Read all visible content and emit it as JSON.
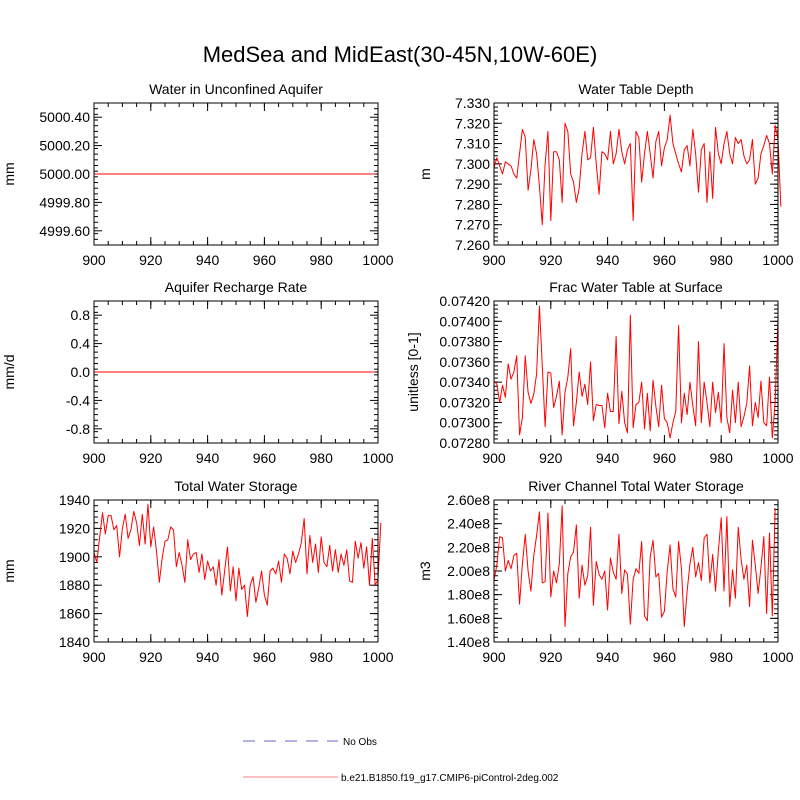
{
  "figure_title": "MedSea and MidEast(30-45N,10W-60E)",
  "colors": {
    "model_line": "#ff0000",
    "obs_line": "#9999dd",
    "axis": "#000000"
  },
  "legend": {
    "obs_label": "No Obs",
    "model_label": "b.e21.B1850.f19_g17.CMIP6-piControl-2deg.002"
  },
  "chart_data": [
    {
      "type": "line",
      "title": "Water in Unconfined Aquifer",
      "ylabel": "mm",
      "xlim": [
        900,
        1000
      ],
      "ylim": [
        4999.5,
        5000.5
      ],
      "xticks": [
        900,
        920,
        940,
        960,
        980,
        1000
      ],
      "xtick_labels": [
        "900",
        "920",
        "940",
        "960",
        "980",
        "1000"
      ],
      "yticks": [
        4999.6,
        4999.8,
        5000.0,
        5000.2,
        5000.4
      ],
      "ytick_labels": [
        "4999.60",
        "4999.80",
        "5000.00",
        "5000.20",
        "5000.40"
      ],
      "series": [
        {
          "name": "b.e21.B1850.f19_g17.CMIP6-piControl-2deg.002",
          "x_start": 900,
          "x_step": 1,
          "values": [
            5000,
            5000,
            5000,
            5000,
            5000,
            5000,
            5000,
            5000,
            5000,
            5000,
            5000,
            5000,
            5000,
            5000,
            5000,
            5000,
            5000,
            5000,
            5000,
            5000,
            5000,
            5000,
            5000,
            5000,
            5000,
            5000,
            5000,
            5000,
            5000,
            5000,
            5000,
            5000,
            5000,
            5000,
            5000,
            5000,
            5000,
            5000,
            5000,
            5000,
            5000,
            5000,
            5000,
            5000,
            5000,
            5000,
            5000,
            5000,
            5000,
            5000,
            5000,
            5000,
            5000,
            5000,
            5000,
            5000,
            5000,
            5000,
            5000,
            5000,
            5000,
            5000,
            5000,
            5000,
            5000,
            5000,
            5000,
            5000,
            5000,
            5000,
            5000,
            5000,
            5000,
            5000,
            5000,
            5000,
            5000,
            5000,
            5000,
            5000,
            5000,
            5000,
            5000,
            5000,
            5000,
            5000,
            5000,
            5000,
            5000,
            5000,
            5000,
            5000,
            5000,
            5000,
            5000,
            5000,
            5000,
            5000,
            5000,
            5000
          ]
        }
      ]
    },
    {
      "type": "line",
      "title": "Water Table Depth",
      "ylabel": "m",
      "xlim": [
        900,
        1000
      ],
      "ylim": [
        7.26,
        7.33
      ],
      "xticks": [
        900,
        920,
        940,
        960,
        980,
        1000
      ],
      "xtick_labels": [
        "900",
        "920",
        "940",
        "960",
        "980",
        "1000"
      ],
      "yticks": [
        7.26,
        7.27,
        7.28,
        7.29,
        7.3,
        7.31,
        7.32,
        7.33
      ],
      "ytick_labels": [
        "7.260",
        "7.270",
        "7.280",
        "7.290",
        "7.300",
        "7.310",
        "7.320",
        "7.330"
      ],
      "series": [
        {
          "name": "b.e21.B1850.f19_g17.CMIP6-piControl-2deg.002",
          "x_start": 900,
          "x_step": 1,
          "values": [
            7.298,
            7.303,
            7.299,
            7.295,
            7.301,
            7.3,
            7.299,
            7.295,
            7.293,
            7.305,
            7.317,
            7.313,
            7.287,
            7.297,
            7.312,
            7.305,
            7.289,
            7.27,
            7.3,
            7.316,
            7.272,
            7.306,
            7.306,
            7.302,
            7.281,
            7.32,
            7.316,
            7.295,
            7.291,
            7.281,
            7.288,
            7.305,
            7.316,
            7.302,
            7.303,
            7.318,
            7.3,
            7.285,
            7.306,
            7.305,
            7.302,
            7.316,
            7.3,
            7.305,
            7.317,
            7.306,
            7.3,
            7.307,
            7.31,
            7.272,
            7.316,
            7.313,
            7.291,
            7.305,
            7.316,
            7.305,
            7.293,
            7.311,
            7.316,
            7.299,
            7.308,
            7.312,
            7.324,
            7.31,
            7.305,
            7.3,
            7.296,
            7.307,
            7.309,
            7.299,
            7.317,
            7.305,
            7.286,
            7.307,
            7.31,
            7.281,
            7.306,
            7.283,
            7.318,
            7.305,
            7.3,
            7.31,
            7.316,
            7.305,
            7.3,
            7.313,
            7.31,
            7.312,
            7.304,
            7.3,
            7.302,
            7.312,
            7.29,
            7.293,
            7.305,
            7.309,
            7.314,
            7.31,
            7.295,
            7.319,
            7.312,
            7.279
          ]
        }
      ]
    },
    {
      "type": "line",
      "title": "Aquifer Recharge Rate",
      "ylabel": "mm/d",
      "xlim": [
        900,
        1000
      ],
      "ylim": [
        -1.0,
        1.0
      ],
      "xticks": [
        900,
        920,
        940,
        960,
        980,
        1000
      ],
      "xtick_labels": [
        "900",
        "920",
        "940",
        "960",
        "980",
        "1000"
      ],
      "yticks": [
        -0.8,
        -0.4,
        0.0,
        0.4,
        0.8
      ],
      "ytick_labels": [
        "-0.8",
        "-0.4",
        "0.0",
        "0.4",
        "0.8"
      ],
      "series": [
        {
          "name": "b.e21.B1850.f19_g17.CMIP6-piControl-2deg.002",
          "x_start": 900,
          "x_step": 1,
          "values": [
            0,
            0,
            0,
            0,
            0,
            0,
            0,
            0,
            0,
            0,
            0,
            0,
            0,
            0,
            0,
            0,
            0,
            0,
            0,
            0,
            0,
            0,
            0,
            0,
            0,
            0,
            0,
            0,
            0,
            0,
            0,
            0,
            0,
            0,
            0,
            0,
            0,
            0,
            0,
            0,
            0,
            0,
            0,
            0,
            0,
            0,
            0,
            0,
            0,
            0,
            0,
            0,
            0,
            0,
            0,
            0,
            0,
            0,
            0,
            0,
            0,
            0,
            0,
            0,
            0,
            0,
            0,
            0,
            0,
            0,
            0,
            0,
            0,
            0,
            0,
            0,
            0,
            0,
            0,
            0,
            0,
            0,
            0,
            0,
            0,
            0,
            0,
            0,
            0,
            0,
            0,
            0,
            0,
            0,
            0,
            0,
            0,
            0,
            0,
            0
          ]
        }
      ]
    },
    {
      "type": "line",
      "title": "Frac Water Table at Surface",
      "ylabel": "unitless [0-1]",
      "xlim": [
        900,
        1000
      ],
      "ylim": [
        0.0728,
        0.0742
      ],
      "xticks": [
        900,
        920,
        940,
        960,
        980,
        1000
      ],
      "xtick_labels": [
        "900",
        "920",
        "940",
        "960",
        "980",
        "1000"
      ],
      "yticks": [
        0.0728,
        0.073,
        0.0732,
        0.0734,
        0.0736,
        0.0738,
        0.074,
        0.0742
      ],
      "ytick_labels": [
        "0.07280",
        "0.07300",
        "0.07320",
        "0.07340",
        "0.07360",
        "0.07380",
        "0.07400",
        "0.07420"
      ],
      "series": [
        {
          "name": "b.e21.B1850.f19_g17.CMIP6-piControl-2deg.002",
          "x_start": 900,
          "x_step": 1,
          "values": [
            0.07341,
            0.07338,
            0.0732,
            0.07337,
            0.07325,
            0.07358,
            0.07343,
            0.0735,
            0.07366,
            0.07288,
            0.07305,
            0.07366,
            0.0733,
            0.07319,
            0.07328,
            0.07348,
            0.07415,
            0.07356,
            0.07296,
            0.0735,
            0.07349,
            0.07315,
            0.07326,
            0.07341,
            0.07288,
            0.0733,
            0.07345,
            0.07373,
            0.07297,
            0.0732,
            0.0735,
            0.07326,
            0.07338,
            0.07318,
            0.0736,
            0.07302,
            0.07318,
            0.07317,
            0.07317,
            0.07295,
            0.07329,
            0.07311,
            0.07311,
            0.07385,
            0.07299,
            0.07331,
            0.073,
            0.0729,
            0.07406,
            0.07295,
            0.07318,
            0.0732,
            0.0734,
            0.07294,
            0.07329,
            0.07292,
            0.07342,
            0.07316,
            0.07296,
            0.07337,
            0.07304,
            0.073,
            0.07285,
            0.073,
            0.07311,
            0.07396,
            0.073,
            0.07329,
            0.07308,
            0.0734,
            0.07317,
            0.07297,
            0.0738,
            0.073,
            0.0734,
            0.0732,
            0.07296,
            0.0734,
            0.0731,
            0.0733,
            0.073,
            0.07378,
            0.07305,
            0.0729,
            0.07332,
            0.073,
            0.0734,
            0.07296,
            0.07306,
            0.07319,
            0.07356,
            0.07297,
            0.0732,
            0.07305,
            0.07341,
            0.073,
            0.07297,
            0.07345,
            0.07285,
            0.0732,
            0.07404
          ]
        }
      ]
    },
    {
      "type": "line",
      "title": "Total Water Storage",
      "ylabel": "mm",
      "xlim": [
        900,
        1000
      ],
      "ylim": [
        1840,
        1940
      ],
      "xticks": [
        900,
        920,
        940,
        960,
        980,
        1000
      ],
      "xtick_labels": [
        "900",
        "920",
        "940",
        "960",
        "980",
        "1000"
      ],
      "yticks": [
        1840,
        1860,
        1880,
        1900,
        1920,
        1940
      ],
      "ytick_labels": [
        "1840",
        "1860",
        "1880",
        "1900",
        "1920",
        "1940"
      ],
      "series": [
        {
          "name": "b.e21.B1850.f19_g17.CMIP6-piControl-2deg.002",
          "x_start": 900,
          "x_step": 1,
          "values": [
            1903,
            1896,
            1914,
            1931,
            1916,
            1929,
            1929,
            1919,
            1922,
            1900,
            1920,
            1930,
            1913,
            1919,
            1932,
            1924,
            1908,
            1930,
            1909,
            1937,
            1907,
            1921,
            1904,
            1882,
            1899,
            1911,
            1912,
            1921,
            1919,
            1893,
            1903,
            1894,
            1882,
            1912,
            1898,
            1902,
            1903,
            1889,
            1902,
            1884,
            1897,
            1890,
            1893,
            1880,
            1898,
            1873,
            1890,
            1907,
            1876,
            1893,
            1869,
            1892,
            1877,
            1880,
            1858,
            1880,
            1886,
            1868,
            1878,
            1890,
            1873,
            1866,
            1890,
            1892,
            1888,
            1897,
            1882,
            1902,
            1899,
            1888,
            1904,
            1896,
            1902,
            1910,
            1927,
            1888,
            1915,
            1896,
            1909,
            1889,
            1914,
            1896,
            1893,
            1908,
            1890,
            1905,
            1889,
            1902,
            1894,
            1905,
            1883,
            1882,
            1911,
            1899,
            1910,
            1892,
            1907,
            1880,
            1913,
            1880,
            1884,
            1924
          ]
        }
      ]
    },
    {
      "type": "line",
      "title": "River Channel Total Water Storage",
      "ylabel": "m3",
      "xlim": [
        900,
        1000
      ],
      "ylim": [
        140000000.0,
        260000000.0
      ],
      "xticks": [
        900,
        920,
        940,
        960,
        980,
        1000
      ],
      "xtick_labels": [
        "900",
        "920",
        "940",
        "960",
        "980",
        "1000"
      ],
      "yticks": [
        140000000.0,
        160000000.0,
        180000000.0,
        200000000.0,
        220000000.0,
        240000000.0,
        260000000.0
      ],
      "ytick_labels": [
        "1.40e8",
        "1.60e8",
        "1.80e8",
        "2.00e8",
        "2.20e8",
        "2.40e8",
        "2.60e8"
      ],
      "series": [
        {
          "name": "b.e21.B1850.f19_g17.CMIP6-piControl-2deg.002",
          "x_start": 900,
          "x_step": 1,
          "values": [
            192000000.0,
            205000000.0,
            229000000.0,
            228000000.0,
            200000000.0,
            209000000.0,
            202000000.0,
            213000000.0,
            215000000.0,
            172000000.0,
            206000000.0,
            231000000.0,
            200000000.0,
            183000000.0,
            213000000.0,
            230000000.0,
            250000000.0,
            190000000.0,
            191000000.0,
            249000000.0,
            178000000.0,
            200000000.0,
            190000000.0,
            206000000.0,
            255000000.0,
            153000000.0,
            198000000.0,
            212000000.0,
            216000000.0,
            239000000.0,
            177000000.0,
            205000000.0,
            188000000.0,
            196000000.0,
            237000000.0,
            171000000.0,
            208000000.0,
            197000000.0,
            193000000.0,
            200000000.0,
            167000000.0,
            211000000.0,
            199000000.0,
            193000000.0,
            231000000.0,
            181000000.0,
            201000000.0,
            197000000.0,
            155000000.0,
            193000000.0,
            202000000.0,
            198000000.0,
            225000000.0,
            162000000.0,
            158000000.0,
            212000000.0,
            226000000.0,
            195000000.0,
            198000000.0,
            161000000.0,
            166000000.0,
            200000000.0,
            222000000.0,
            185000000.0,
            178000000.0,
            225000000.0,
            202000000.0,
            153000000.0,
            183000000.0,
            206000000.0,
            220000000.0,
            195000000.0,
            207000000.0,
            192000000.0,
            228000000.0,
            231000000.0,
            190000000.0,
            214000000.0,
            183000000.0,
            217000000.0,
            245000000.0,
            183000000.0,
            246000000.0,
            170000000.0,
            201000000.0,
            177000000.0,
            237000000.0,
            210000000.0,
            193000000.0,
            205000000.0,
            170000000.0,
            226000000.0,
            205000000.0,
            181000000.0,
            203000000.0,
            229000000.0,
            164000000.0,
            232000000.0,
            162000000.0,
            253000000.0
          ]
        }
      ]
    }
  ]
}
